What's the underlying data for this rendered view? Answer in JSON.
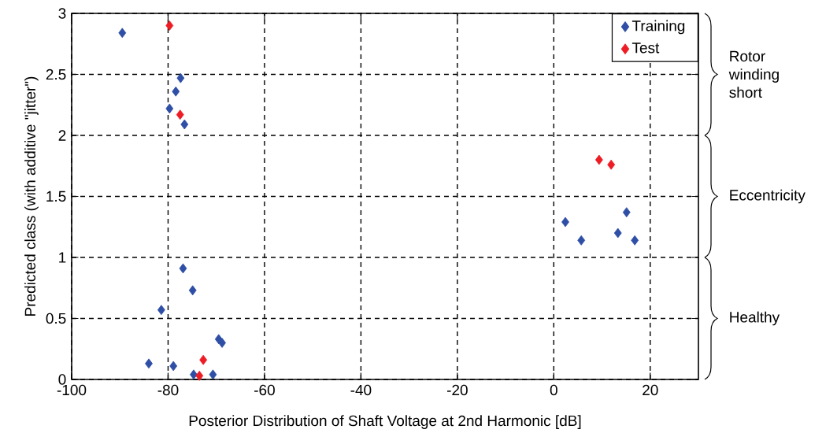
{
  "chart_data": {
    "type": "scatter",
    "xlabel": "Posterior Distribution of Shaft Voltage at 2nd Harmonic [dB]",
    "ylabel": "Predicted class (with additive \"jitter\")",
    "xlim": [
      -100,
      30
    ],
    "ylim": [
      0,
      3
    ],
    "xticks": [
      -100,
      -80,
      -60,
      -40,
      -20,
      0,
      20
    ],
    "yticks": [
      0,
      0.5,
      1,
      1.5,
      2,
      2.5,
      3
    ],
    "grid": true,
    "legend": "top right",
    "marker": "diamond",
    "series": [
      {
        "name": "Training",
        "color": "#2e4fa5",
        "x": [
          -89.5,
          -77.4,
          -78.4,
          -79.7,
          -76.6,
          -76.9,
          -74.9,
          -81.4,
          -69.5,
          -68.8,
          -84.0,
          -78.9,
          -74.7,
          -70.7,
          2.4,
          5.7,
          13.3,
          15.1,
          16.8
        ],
        "values": [
          2.84,
          2.47,
          2.36,
          2.22,
          2.09,
          0.91,
          0.73,
          0.57,
          0.33,
          0.3,
          0.13,
          0.11,
          0.04,
          0.04,
          1.29,
          1.14,
          1.2,
          1.37,
          1.14
        ]
      },
      {
        "name": "Test",
        "color": "#ee1c24",
        "x": [
          -79.7,
          -77.5,
          -72.7,
          -73.5,
          9.4,
          11.9
        ],
        "values": [
          2.9,
          2.17,
          0.16,
          0.03,
          1.8,
          1.76
        ]
      }
    ],
    "annotations": [
      "Rotor winding short",
      "Eccentricity",
      "Healthy"
    ]
  }
}
